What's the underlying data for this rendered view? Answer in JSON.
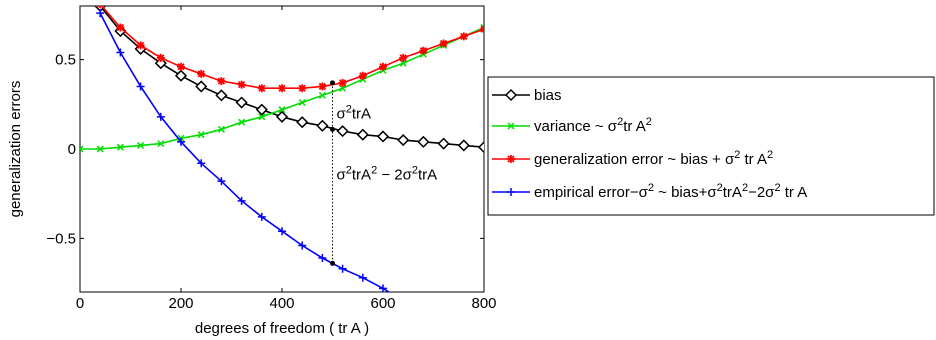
{
  "chart_data": {
    "type": "line",
    "xlabel": "degrees of freedom ( tr A )",
    "ylabel": "generalization errors",
    "xlim": [
      0,
      800
    ],
    "ylim": [
      -0.8,
      0.8
    ],
    "xticks": [
      0,
      200,
      400,
      600,
      800
    ],
    "xtick_labels": [
      "0",
      "200",
      "400",
      "600",
      "800"
    ],
    "yticks": [
      0.5,
      0,
      -0.5
    ],
    "ytick_labels": [
      "0.5",
      "0",
      "−0.5"
    ],
    "grid": false,
    "legend_position": "right",
    "series": [
      {
        "name_parts": [
          "bias"
        ],
        "color": "#000000",
        "marker": "diamond",
        "x": [
          0,
          40,
          80,
          120,
          160,
          200,
          240,
          280,
          320,
          360,
          400,
          440,
          480,
          520,
          560,
          600,
          640,
          680,
          720,
          760,
          800
        ],
        "y": [
          0.95,
          0.8,
          0.66,
          0.56,
          0.48,
          0.41,
          0.35,
          0.3,
          0.26,
          0.22,
          0.18,
          0.15,
          0.13,
          0.1,
          0.08,
          0.07,
          0.05,
          0.04,
          0.03,
          0.02,
          0.01
        ]
      },
      {
        "name_parts": [
          "variance ~  σ",
          "2",
          "tr A",
          "2"
        ],
        "color": "#00dd00",
        "marker": "x",
        "x": [
          0,
          40,
          80,
          120,
          160,
          200,
          240,
          280,
          320,
          360,
          400,
          440,
          480,
          520,
          560,
          600,
          640,
          680,
          720,
          760,
          800
        ],
        "y": [
          0.0,
          0.0,
          0.01,
          0.02,
          0.03,
          0.06,
          0.08,
          0.11,
          0.15,
          0.18,
          0.22,
          0.26,
          0.3,
          0.34,
          0.39,
          0.44,
          0.48,
          0.53,
          0.58,
          0.63,
          0.68
        ]
      },
      {
        "name_parts": [
          "generalization error ~ bias +  σ",
          "2",
          " tr A",
          "2"
        ],
        "color": "#ff0000",
        "marker": "asterisk",
        "x": [
          0,
          40,
          80,
          120,
          160,
          200,
          240,
          280,
          320,
          360,
          400,
          440,
          480,
          520,
          560,
          600,
          640,
          680,
          720,
          760,
          800
        ],
        "y": [
          0.95,
          0.81,
          0.68,
          0.58,
          0.51,
          0.46,
          0.42,
          0.38,
          0.36,
          0.34,
          0.34,
          0.34,
          0.35,
          0.37,
          0.41,
          0.46,
          0.51,
          0.55,
          0.59,
          0.63,
          0.67
        ]
      },
      {
        "name_parts": [
          "empirical error−σ",
          "2",
          " ~ bias+σ",
          "2",
          "trA",
          "2",
          "−2σ",
          "2",
          " tr A"
        ],
        "color": "#0000ff",
        "marker": "plus",
        "x": [
          40,
          80,
          120,
          160,
          200,
          240,
          280,
          320,
          360,
          400,
          440,
          480,
          520,
          560,
          600,
          640
        ],
        "y": [
          0.76,
          0.54,
          0.35,
          0.18,
          0.04,
          -0.08,
          -0.18,
          -0.29,
          -0.38,
          -0.46,
          -0.54,
          -0.61,
          -0.67,
          -0.72,
          -0.78,
          -0.85
        ]
      }
    ],
    "annotations": {
      "marker_x": 500,
      "upper_points": [
        0.37,
        0.11
      ],
      "lower_points": [
        -0.64
      ],
      "upper_label_parts": [
        "σ",
        "2",
        "trA"
      ],
      "lower_label_parts": [
        "σ",
        "2",
        "trA",
        "2",
        " − 2σ",
        "2",
        "trA"
      ]
    }
  }
}
